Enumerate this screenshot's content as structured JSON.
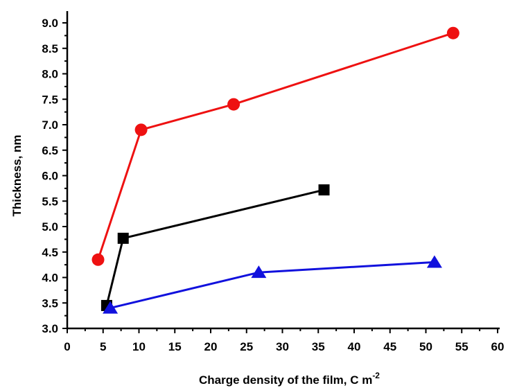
{
  "chart_data": {
    "type": "line",
    "title": "",
    "xlabel": "Charge density of the film, C m",
    "xlabel_sup": "-2",
    "ylabel": "Thickness, nm",
    "xlim": [
      0,
      60
    ],
    "ylim": [
      3.0,
      9.0
    ],
    "xticks": [
      "0",
      "5",
      "10",
      "15",
      "20",
      "25",
      "30",
      "35",
      "40",
      "45",
      "50",
      "55",
      "60"
    ],
    "yticks": [
      "3.0",
      "3.5",
      "4.0",
      "4.5",
      "5.0",
      "5.5",
      "6.0",
      "6.5",
      "7.0",
      "7.5",
      "8.0",
      "8.5",
      "9.0"
    ],
    "grid": false,
    "legend": "none",
    "series": [
      {
        "color": "#ee1111",
        "marker": "circle",
        "x": [
          4.3,
          10.3,
          23.2,
          53.8
        ],
        "y": [
          4.35,
          6.9,
          7.4,
          8.8
        ]
      },
      {
        "color": "#000000",
        "marker": "square",
        "x": [
          5.5,
          7.8,
          35.8
        ],
        "y": [
          3.45,
          4.77,
          5.72
        ]
      },
      {
        "color": "#1111dd",
        "marker": "triangle",
        "x": [
          6.0,
          26.7,
          51.2
        ],
        "y": [
          3.4,
          4.1,
          4.3
        ]
      }
    ]
  }
}
